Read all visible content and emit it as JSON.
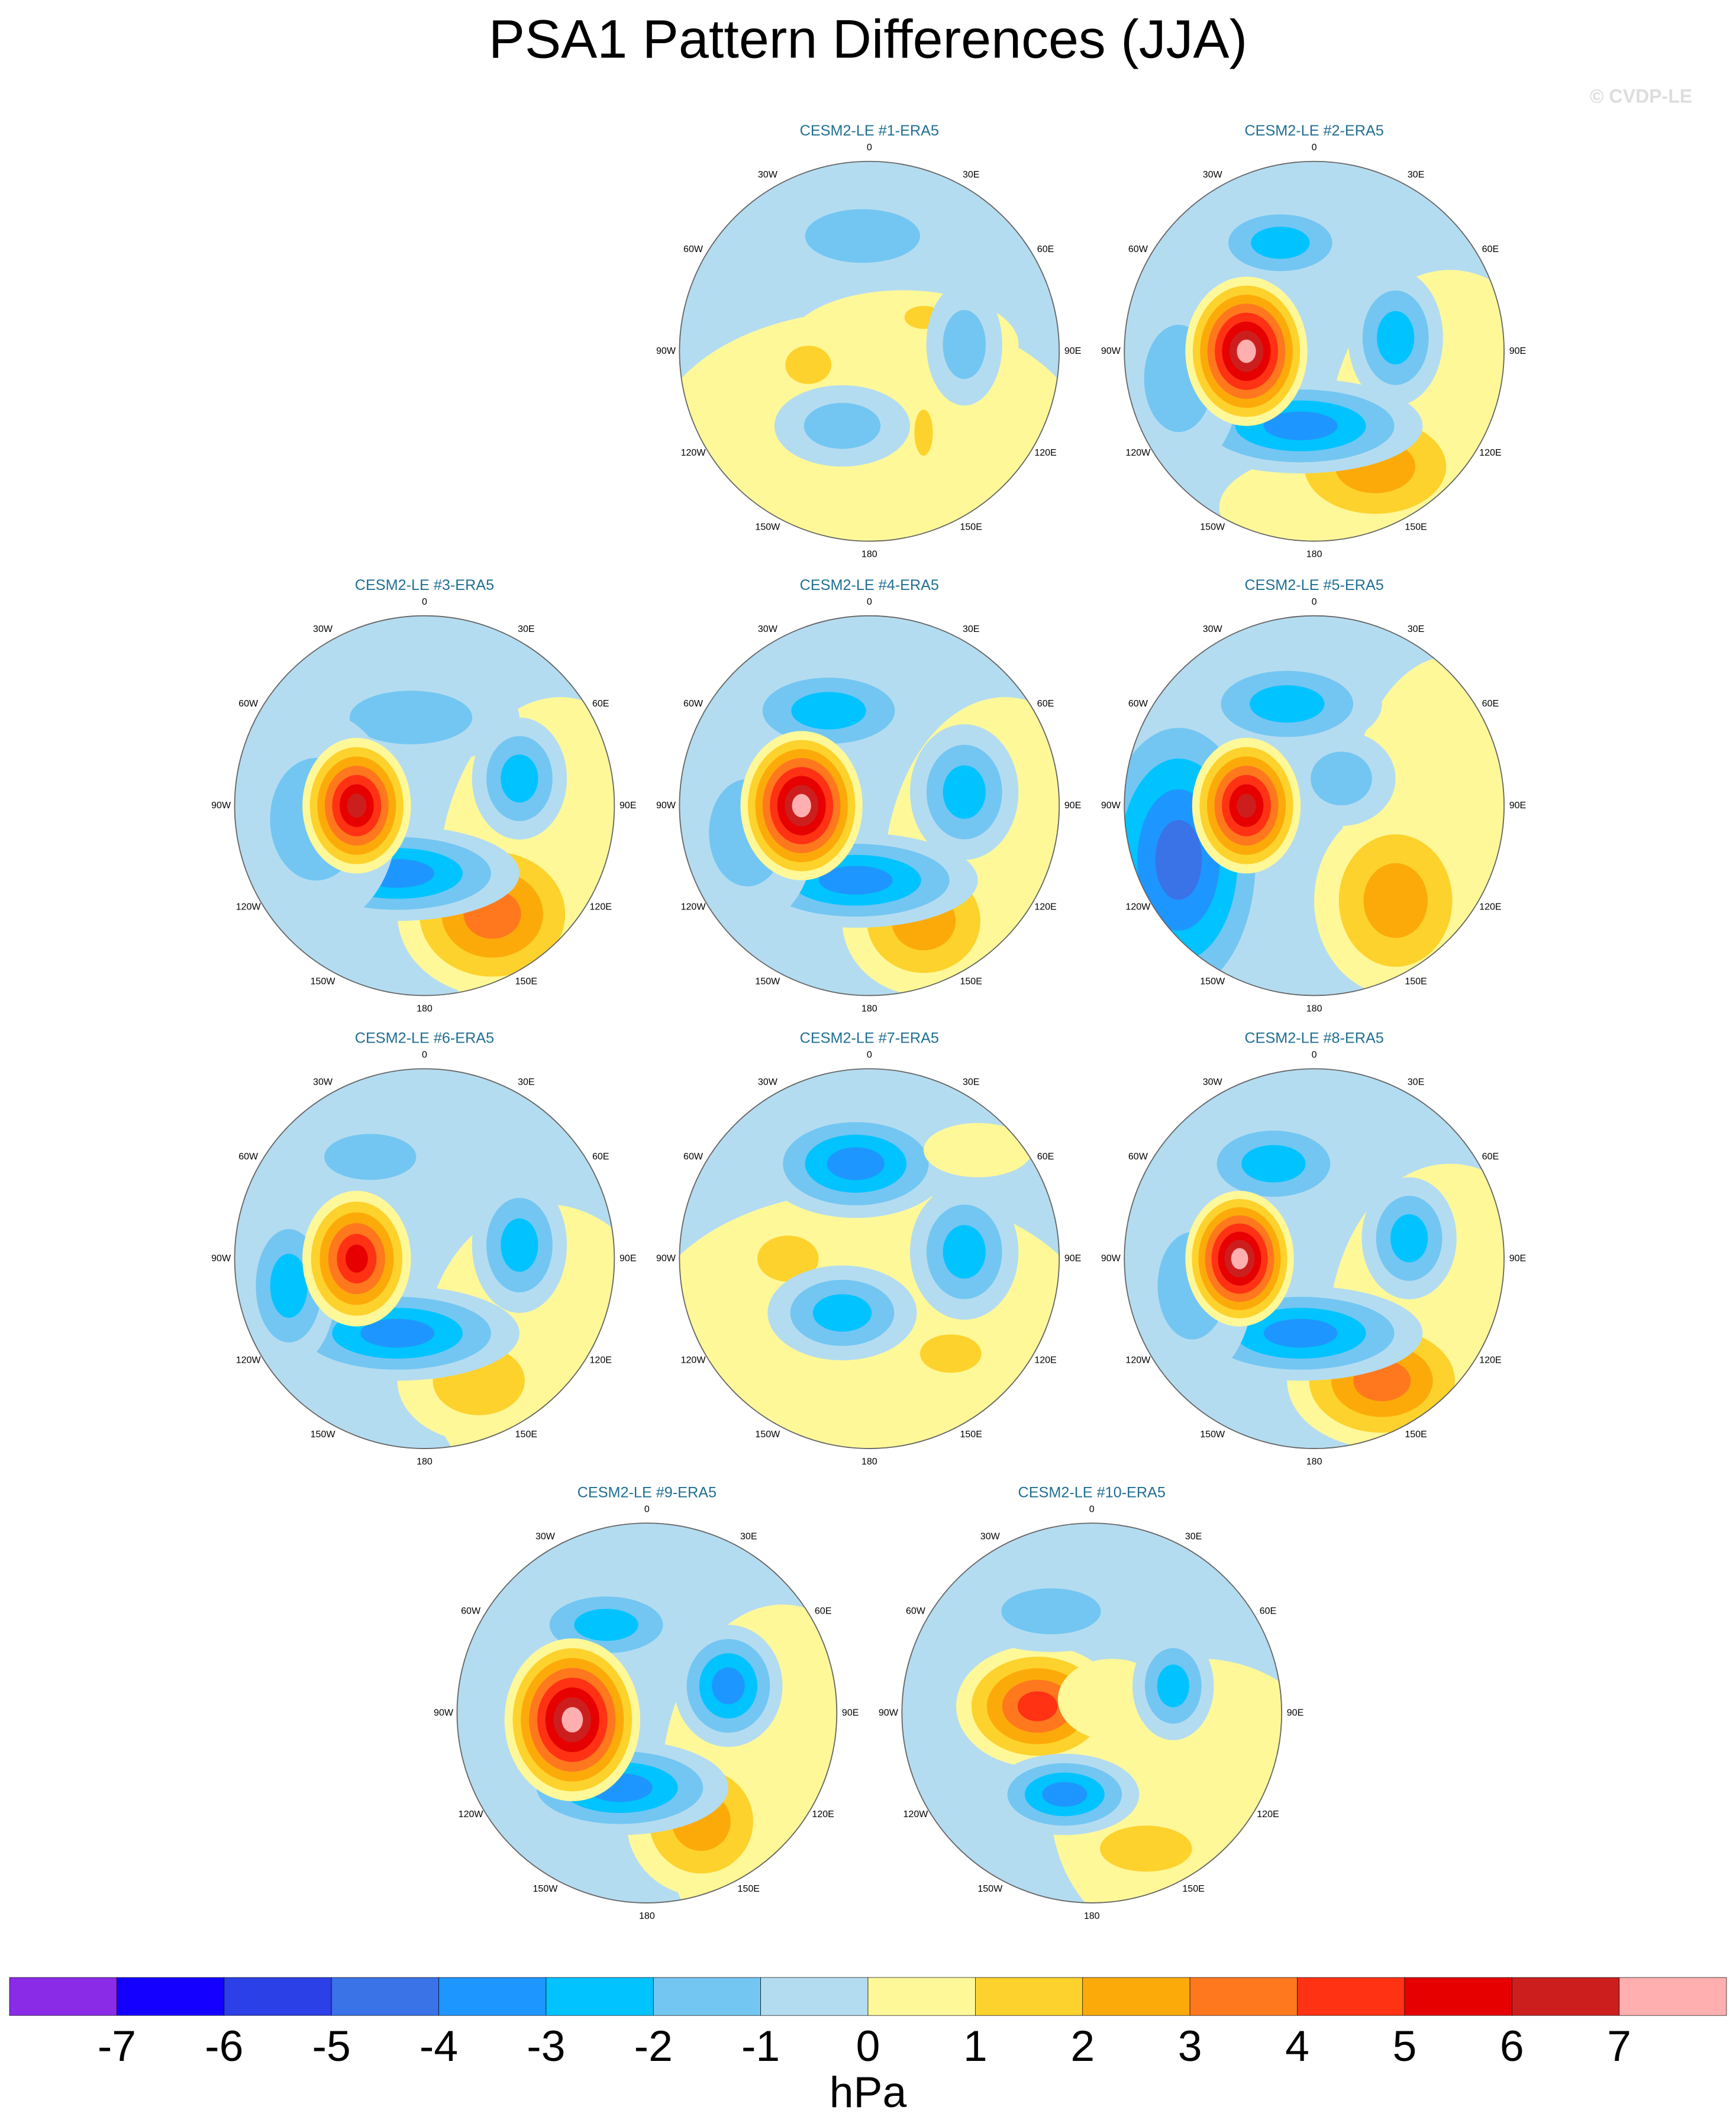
{
  "title": "PSA1 Pattern Differences (JJA)",
  "watermark": "© CVDP-LE",
  "lon_labels": [
    "0",
    "30E",
    "60E",
    "90E",
    "120E",
    "150E",
    "180",
    "150W",
    "120W",
    "90W",
    "60W",
    "30W"
  ],
  "panels": [
    {
      "title": "CESM2-LE #1-ERA5"
    },
    {
      "title": "CESM2-LE #2-ERA5"
    },
    {
      "title": "CESM2-LE #3-ERA5"
    },
    {
      "title": "CESM2-LE #4-ERA5"
    },
    {
      "title": "CESM2-LE #5-ERA5"
    },
    {
      "title": "CESM2-LE #6-ERA5"
    },
    {
      "title": "CESM2-LE #7-ERA5"
    },
    {
      "title": "CESM2-LE #8-ERA5"
    },
    {
      "title": "CESM2-LE #9-ERA5"
    },
    {
      "title": "CESM2-LE #10-ERA5"
    }
  ],
  "colorbar": {
    "levels": [
      -7,
      -6,
      -5,
      -4,
      -3,
      -2,
      -1,
      0,
      1,
      2,
      3,
      4,
      5,
      6,
      7
    ],
    "colors": [
      "#8a2be8",
      "#1400ff",
      "#2b40e6",
      "#3a72e8",
      "#1e96ff",
      "#00c3ff",
      "#73c6f2",
      "#b4dcf0",
      "#fff899",
      "#fdd22c",
      "#fcaa0a",
      "#ff781e",
      "#ff3214",
      "#e60000",
      "#cd1e1e",
      "#ffafaf"
    ],
    "label": "hPa"
  }
}
